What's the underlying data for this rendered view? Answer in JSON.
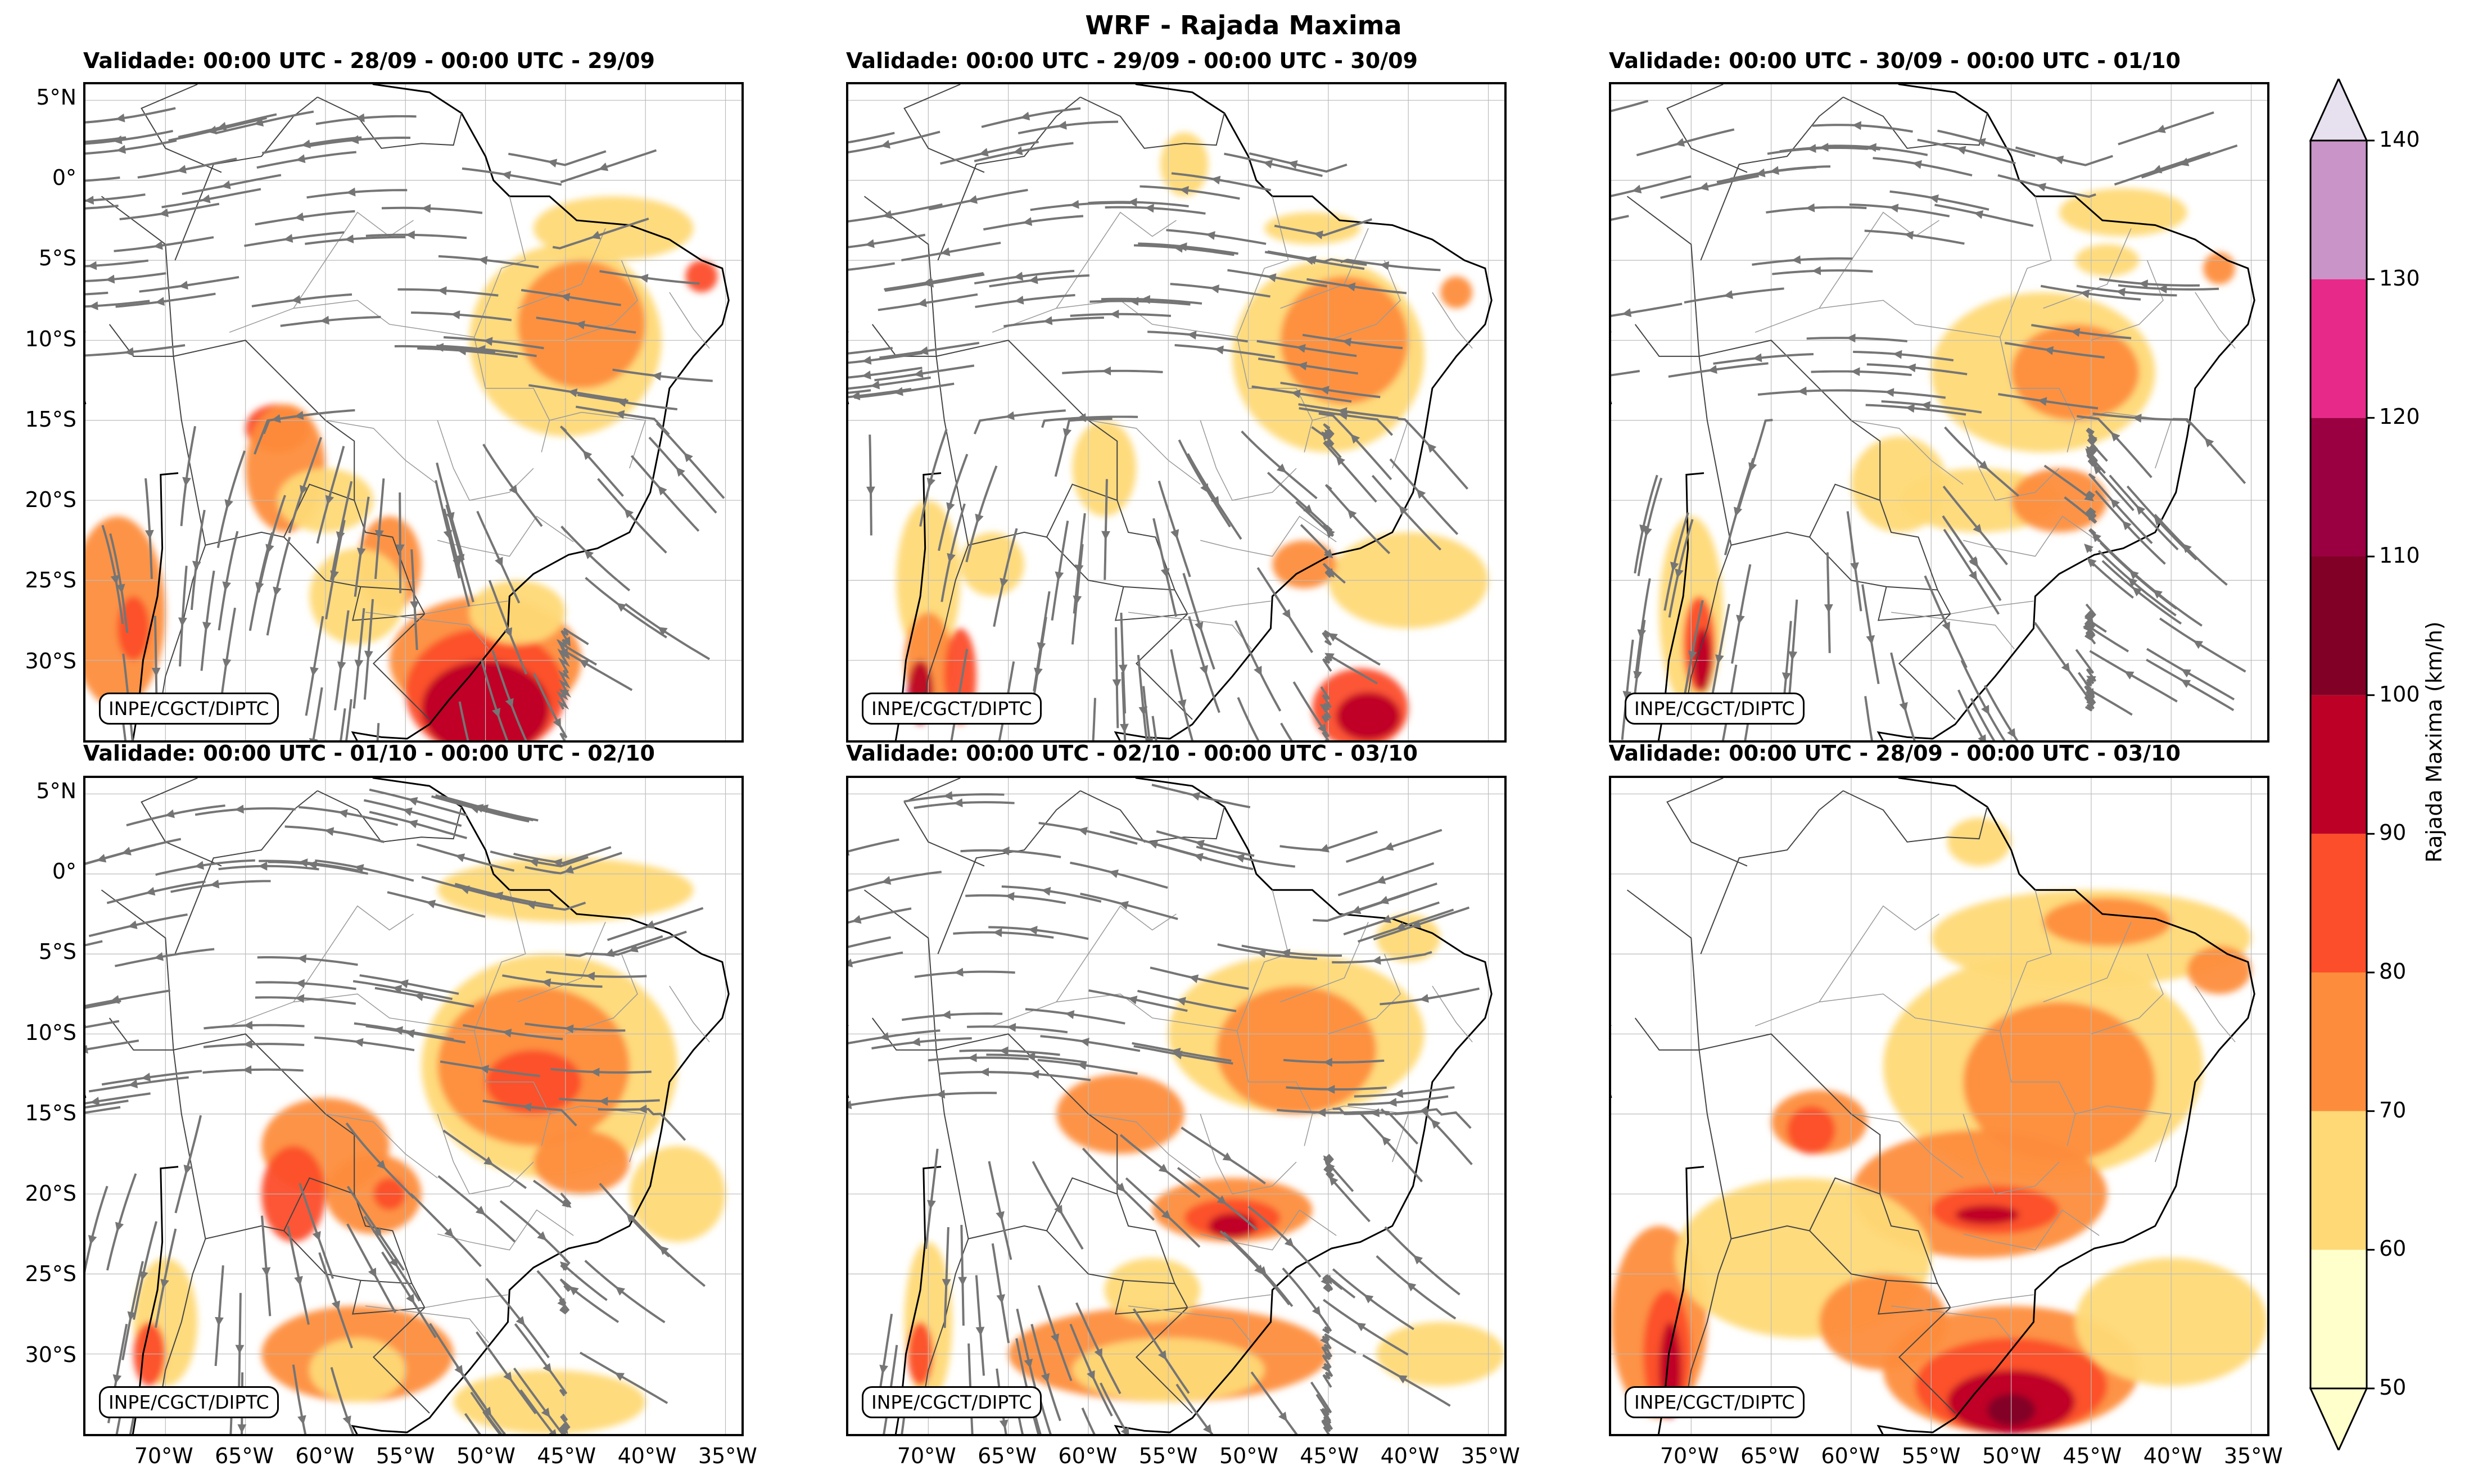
{
  "title": "WRF - Rajada Maxima",
  "credit": "INPE/CGCT/DIPTC",
  "panels": [
    {
      "title": "Validade: 00:00 UTC - 28/09 - 00:00 UTC - 29/09",
      "has_streamlines": true
    },
    {
      "title": "Validade: 00:00 UTC - 29/09 - 00:00 UTC - 30/09",
      "has_streamlines": true
    },
    {
      "title": "Validade: 00:00 UTC - 30/09 - 00:00 UTC - 01/10",
      "has_streamlines": true
    },
    {
      "title": "Validade: 00:00 UTC - 01/10 - 00:00 UTC - 02/10",
      "has_streamlines": true
    },
    {
      "title": "Validade: 00:00 UTC - 02/10 - 00:00 UTC - 03/10",
      "has_streamlines": true
    },
    {
      "title": "Validade: 00:00 UTC - 28/09 - 00:00 UTC - 03/10",
      "has_streamlines": false
    }
  ],
  "lat_labels": [
    "5°N",
    "0°",
    "5°S",
    "10°S",
    "15°S",
    "20°S",
    "25°S",
    "30°S"
  ],
  "lon_labels": [
    "70°W",
    "65°W",
    "60°W",
    "55°W",
    "50°W",
    "45°W",
    "40°W",
    "35°W"
  ],
  "colorbar": {
    "title": "Rajada Maxima (km/h)",
    "ticks": [
      "50",
      "60",
      "70",
      "80",
      "90",
      "100",
      "110",
      "120",
      "130",
      "140"
    ],
    "colors": [
      "#ffffcc",
      "#fed976",
      "#fd8d3c",
      "#fc4e2a",
      "#bd0026",
      "#800026",
      "#9a0041",
      "#e7298a",
      "#c994c7",
      "#e7e1ef"
    ]
  },
  "chart_data": {
    "type": "heatmap",
    "title": "WRF - Rajada Maxima",
    "variable": "Rajada Maxima (km/h)",
    "levels": [
      50,
      60,
      70,
      80,
      90,
      100,
      110,
      120,
      130,
      140
    ],
    "lon_range": [
      -75,
      -34
    ],
    "lat_range": [
      -35,
      6
    ],
    "overlay": "streamlines (wind)"
  }
}
